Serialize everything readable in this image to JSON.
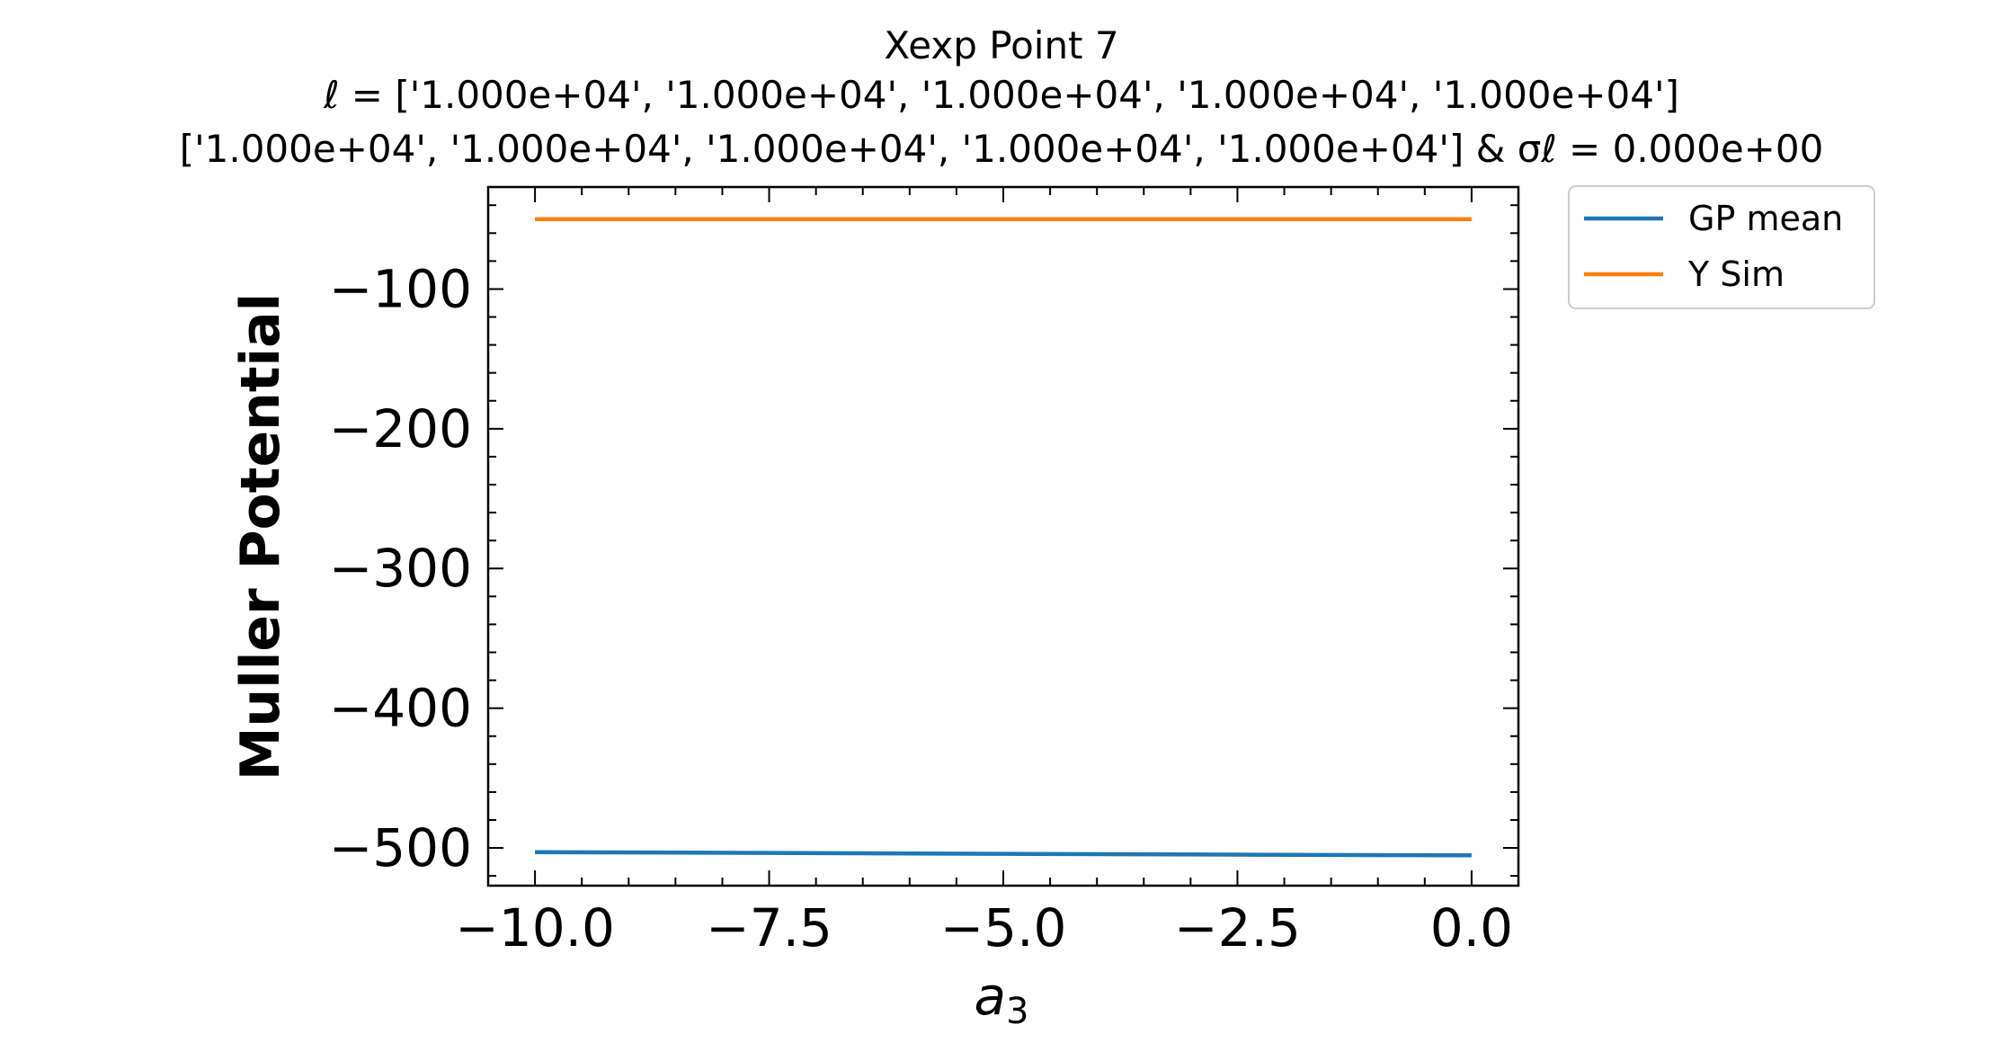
{
  "chart_data": {
    "type": "line",
    "title_lines": [
      "Xexp Point 7",
      "ℓ = ['1.000e+04', '1.000e+04', '1.000e+04', '1.000e+04', '1.000e+04']",
      "['1.000e+04', '1.000e+04', '1.000e+04', '1.000e+04', '1.000e+04'] & σℓ = 0.000e+00"
    ],
    "xlabel": "a",
    "xlabel_sub": "3",
    "ylabel": "Muller Potential",
    "xlim": [
      -10.5,
      0.5
    ],
    "ylim": [
      -527,
      -27
    ],
    "xticks": [
      -10.0,
      -7.5,
      -5.0,
      -2.5,
      0.0
    ],
    "xtick_labels": [
      "−10.0",
      "−7.5",
      "−5.0",
      "−2.5",
      "0.0"
    ],
    "yticks": [
      -100,
      -200,
      -300,
      -400,
      -500
    ],
    "ytick_labels": [
      "−100",
      "−200",
      "−300",
      "−400",
      "−500"
    ],
    "grid": false,
    "legend_position": "outside-top-right",
    "series": [
      {
        "name": "GP mean",
        "color": "#1f77b4",
        "x": [
          -10.0,
          -7.5,
          -5.0,
          -2.5,
          0.0
        ],
        "y": [
          -503,
          -503.6,
          -504.2,
          -504.8,
          -505.3
        ]
      },
      {
        "name": "Y Sim",
        "color": "#ff7f0e",
        "x": [
          -10.0,
          -7.5,
          -5.0,
          -2.5,
          0.0
        ],
        "y": [
          -50,
          -50,
          -50,
          -50,
          -50
        ]
      }
    ]
  }
}
